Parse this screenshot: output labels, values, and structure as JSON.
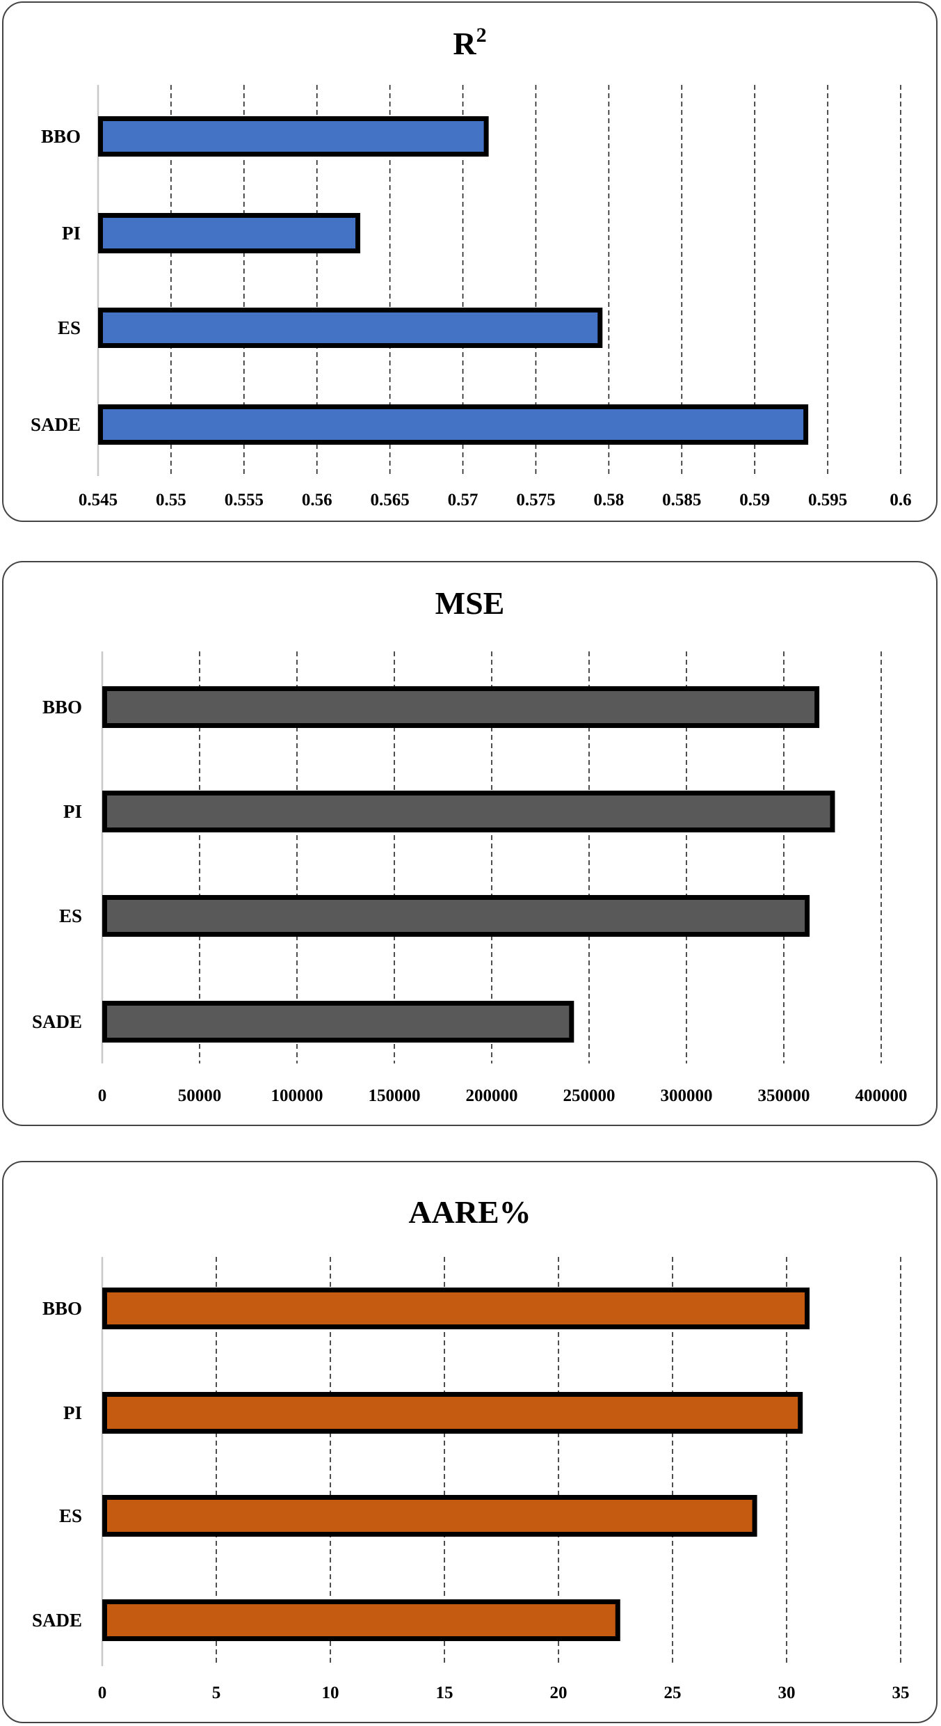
{
  "chart_data": [
    {
      "type": "bar",
      "orientation": "horizontal",
      "title": "R",
      "title_superscript": "2",
      "categories": [
        "BBO",
        "PI",
        "ES",
        "SADE"
      ],
      "values": [
        0.5716,
        0.5628,
        0.5794,
        0.5935
      ],
      "xlim": [
        0.545,
        0.6
      ],
      "xticks": [
        0.545,
        0.55,
        0.555,
        0.56,
        0.565,
        0.57,
        0.575,
        0.58,
        0.585,
        0.59,
        0.595,
        0.6
      ],
      "xtick_labels": [
        "0.545",
        "0.55",
        "0.555",
        "0.56",
        "0.565",
        "0.57",
        "0.575",
        "0.58",
        "0.585",
        "0.59",
        "0.595",
        "0.6"
      ],
      "grid": "vertical-dashed",
      "bar_color": "#4472c4"
    },
    {
      "type": "bar",
      "orientation": "horizontal",
      "title": "MSE",
      "categories": [
        "BBO",
        "PI",
        "ES",
        "SADE"
      ],
      "values": [
        367000,
        375000,
        362000,
        241000
      ],
      "xlim": [
        0,
        400000
      ],
      "xticks": [
        0,
        50000,
        100000,
        150000,
        200000,
        250000,
        300000,
        350000,
        400000
      ],
      "xtick_labels": [
        "0",
        "50000",
        "100000",
        "150000",
        "200000",
        "250000",
        "300000",
        "350000",
        "400000"
      ],
      "grid": "vertical-dashed",
      "bar_color": "#595959"
    },
    {
      "type": "bar",
      "orientation": "horizontal",
      "title": "AARE%",
      "categories": [
        "BBO",
        "PI",
        "ES",
        "SADE"
      ],
      "values": [
        30.9,
        30.6,
        28.6,
        22.6
      ],
      "xlim": [
        0,
        35
      ],
      "xticks": [
        0,
        5,
        10,
        15,
        20,
        25,
        30,
        35
      ],
      "xtick_labels": [
        "0",
        "5",
        "10",
        "15",
        "20",
        "25",
        "30",
        "35"
      ],
      "grid": "vertical-dashed",
      "bar_color": "#c55a11"
    }
  ]
}
